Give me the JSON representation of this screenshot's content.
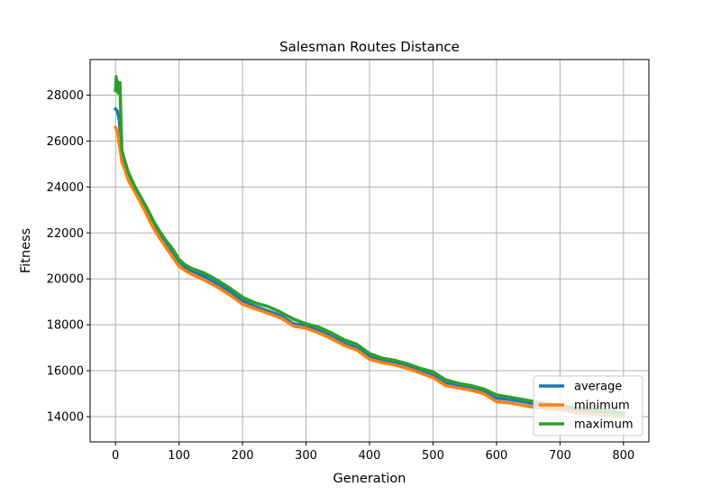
{
  "chart_data": {
    "type": "line",
    "title": "Salesman Routes Distance",
    "xlabel": "Generation",
    "ylabel": "Fitness",
    "xlim": [
      -40,
      840
    ],
    "ylim": [
      12900,
      29550
    ],
    "xticks": [
      0,
      100,
      200,
      300,
      400,
      500,
      600,
      700,
      800
    ],
    "yticks": [
      14000,
      16000,
      18000,
      20000,
      22000,
      24000,
      26000,
      28000
    ],
    "grid": true,
    "legend_position": "lower-right",
    "series": [
      {
        "name": "average",
        "color": "#1f77b4",
        "x": [
          0,
          3,
          6,
          8,
          10,
          15,
          20,
          30,
          40,
          50,
          60,
          70,
          80,
          90,
          100,
          110,
          120,
          140,
          160,
          180,
          200,
          220,
          240,
          260,
          280,
          300,
          320,
          340,
          360,
          380,
          400,
          420,
          440,
          460,
          480,
          500,
          520,
          540,
          560,
          580,
          600,
          620,
          640,
          660,
          680,
          700,
          720,
          740,
          760,
          780,
          800
        ],
        "y": [
          27400,
          27300,
          26900,
          26200,
          25500,
          25000,
          24600,
          23950,
          23450,
          22900,
          22350,
          21900,
          21550,
          21150,
          20750,
          20500,
          20350,
          20100,
          19800,
          19450,
          19050,
          18800,
          18600,
          18400,
          18050,
          17950,
          17750,
          17500,
          17200,
          17000,
          16600,
          16450,
          16350,
          16200,
          16000,
          15800,
          15450,
          15350,
          15250,
          15100,
          14800,
          14750,
          14650,
          14550,
          14450,
          14400,
          14300,
          14250,
          14200,
          14150,
          14080
        ]
      },
      {
        "name": "minimum",
        "color": "#ff7f0e",
        "x": [
          0,
          3,
          5,
          8,
          10,
          15,
          20,
          30,
          40,
          50,
          60,
          70,
          80,
          90,
          100,
          110,
          120,
          140,
          160,
          180,
          200,
          220,
          240,
          260,
          280,
          300,
          320,
          340,
          360,
          380,
          400,
          420,
          440,
          460,
          480,
          500,
          520,
          540,
          560,
          580,
          600,
          620,
          640,
          660,
          680,
          700,
          720,
          740,
          760,
          780,
          800
        ],
        "y": [
          26600,
          26400,
          26000,
          25500,
          25100,
          24750,
          24300,
          23800,
          23300,
          22750,
          22200,
          21750,
          21350,
          20950,
          20550,
          20350,
          20200,
          19950,
          19650,
          19300,
          18900,
          18700,
          18500,
          18300,
          17950,
          17850,
          17650,
          17400,
          17100,
          16900,
          16500,
          16350,
          16250,
          16100,
          15900,
          15700,
          15350,
          15250,
          15150,
          15000,
          14650,
          14600,
          14500,
          14400,
          14350,
          14300,
          14200,
          14150,
          14100,
          14050,
          14000
        ]
      },
      {
        "name": "maximum",
        "color": "#2ca02c",
        "x": [
          0,
          1,
          2,
          3,
          4,
          5,
          6,
          7,
          8,
          10,
          15,
          20,
          30,
          40,
          50,
          60,
          70,
          80,
          90,
          100,
          110,
          120,
          140,
          160,
          180,
          200,
          220,
          240,
          260,
          280,
          300,
          320,
          340,
          360,
          380,
          400,
          420,
          440,
          460,
          480,
          500,
          520,
          540,
          560,
          580,
          600,
          620,
          640,
          660,
          680,
          700,
          720,
          740,
          760,
          780,
          800
        ],
        "y": [
          28200,
          28800,
          28300,
          28600,
          28100,
          28500,
          28200,
          28550,
          27500,
          25600,
          25100,
          24650,
          24050,
          23550,
          23050,
          22500,
          22050,
          21650,
          21300,
          20850,
          20600,
          20450,
          20250,
          19950,
          19600,
          19200,
          18950,
          18800,
          18550,
          18250,
          18050,
          17900,
          17650,
          17350,
          17150,
          16750,
          16550,
          16450,
          16300,
          16100,
          15950,
          15600,
          15450,
          15350,
          15200,
          14950,
          14850,
          14750,
          14650,
          14550,
          14500,
          14400,
          14350,
          14300,
          14250,
          14150
        ]
      }
    ]
  }
}
